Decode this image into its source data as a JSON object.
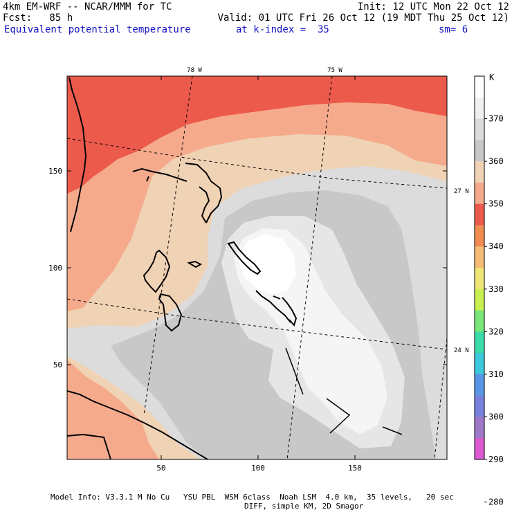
{
  "header": {
    "model": "4km EM-WRF -- NCAR/MMM for TC",
    "init": "Init: 12 UTC Mon 22 Oct 12",
    "fcst": "Fcst:   85 h",
    "valid": "Valid: 01 UTC Fri 26 Oct 12 (19 MDT Thu 25 Oct 12)",
    "field": "Equivalent potential temperature",
    "level": "at k-index =  35",
    "smooth": "sm= 6"
  },
  "axes": {
    "x_ticks": [
      "50",
      "100",
      "150"
    ],
    "y_ticks": [
      "50",
      "100",
      "150"
    ],
    "lon_labels": [
      "78 W",
      "75 W"
    ],
    "lat_labels": [
      "27 N",
      "24 N"
    ]
  },
  "colorbar": {
    "unit": "K",
    "labels": [
      "370",
      "360",
      "350",
      "340",
      "330",
      "320",
      "310",
      "300",
      "290",
      "280"
    ],
    "colors": [
      "#ffffff",
      "#f0f0f0",
      "#dcdcdc",
      "#c8c8c8",
      "#f0d2b4",
      "#f5aa8c",
      "#eb5a4b",
      "#f08c50",
      "#f5bc78",
      "#f0e678",
      "#c8f050",
      "#78e678",
      "#3cdcaa",
      "#3cc8dc",
      "#5a96e6",
      "#7882dc",
      "#a078c8",
      "#dc5ad2"
    ]
  },
  "footer": {
    "line1": "Model Info: V3.3.1 M No Cu   YSU PBL  WSM 6class  Noah LSM  4.0 km,  35 levels,   20 sec",
    "line2": "DIFF, simple KM, 2D Smagor"
  }
}
